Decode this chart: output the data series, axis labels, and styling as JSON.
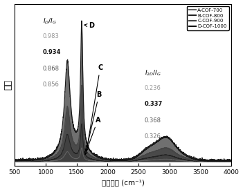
{
  "title": "",
  "xlabel": "拉曼位移 (cm⁻¹)",
  "ylabel": "强度",
  "xlim": [
    500,
    4000
  ],
  "ylim": [
    -0.03,
    1.12
  ],
  "legend_labels": [
    "A-COF-700",
    "B-COF-800",
    "C-COF-900",
    "D-COF-1000"
  ],
  "line_colors": [
    "#666666",
    "#222222",
    "#444444",
    "#111111"
  ],
  "fill_colors": [
    "#aaaaaa",
    "#777777",
    "#555555",
    "#333333"
  ],
  "fill_alphas": [
    0.85,
    0.8,
    0.75,
    0.7
  ],
  "ID_IG_label": "I_D/I_G",
  "ID_IG_values": [
    "0.983",
    "0.934",
    "0.868",
    "0.856"
  ],
  "ID_IG_bold": [
    false,
    true,
    false,
    false
  ],
  "ID_IG_colors": [
    "#999999",
    "#111111",
    "#555555",
    "#777777"
  ],
  "I2D_IG_label": "I_2D/I_G",
  "I2D_IG_values": [
    "0.236",
    "0.337",
    "0.368",
    "0.326"
  ],
  "I2D_IG_bold": [
    false,
    true,
    false,
    false
  ],
  "I2D_IG_colors": [
    "#999999",
    "#111111",
    "#555555",
    "#777777"
  ],
  "xticks": [
    500,
    1000,
    1500,
    2000,
    2500,
    3000,
    3500,
    4000
  ],
  "curve_labels": [
    "A",
    "B",
    "C",
    "D"
  ],
  "background_color": "#ffffff"
}
